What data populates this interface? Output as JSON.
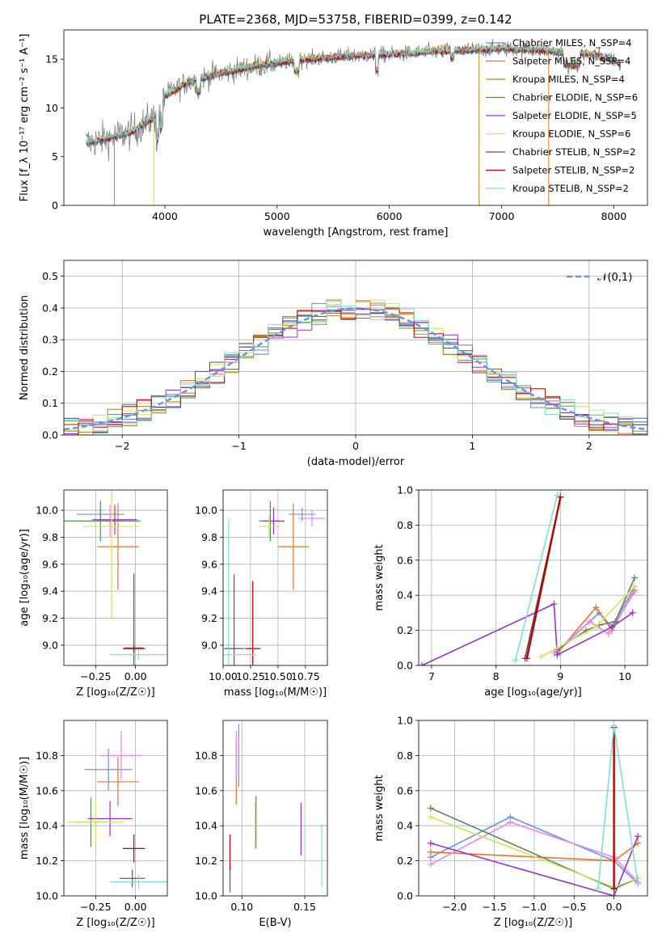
{
  "figure": {
    "title": "PLATE=2368, MJD=53758, FIBERID=0399, z=0.142"
  },
  "chart_data": [
    {
      "id": "spectrum",
      "type": "line",
      "xlabel": "wavelength [Angstrom, rest frame]",
      "ylabel": "Flux [f_λ 10⁻¹⁷ erg cm⁻² s⁻¹ A⁻¹]",
      "xlim": [
        3100,
        8300
      ],
      "ylim": [
        0,
        18
      ],
      "xticks": [
        4000,
        5000,
        6000,
        7000,
        8000
      ],
      "yticks": [
        0,
        5,
        10,
        15
      ],
      "grid": false,
      "legend_position": "right",
      "series": [
        {
          "name": "Chabrier MILES, N_SSP=4",
          "color": "#5b8fd9"
        },
        {
          "name": "Salpeter MILES, N_SSP=4",
          "color": "#e8732b"
        },
        {
          "name": "Kroupa MILES, N_SSP=4",
          "color": "#b8860b"
        },
        {
          "name": "Chabrier ELODIE, N_SSP=6",
          "color": "#5a8a5a"
        },
        {
          "name": "Salpeter ELODIE, N_SSP=5",
          "color": "#9932cc"
        },
        {
          "name": "Kroupa ELODIE, N_SSP=6",
          "color": "#d4e157"
        },
        {
          "name": "Chabrier STELIB, N_SSP=2",
          "color": "#555555"
        },
        {
          "name": "Salpeter STELIB, N_SSP=2",
          "color": "#c00000"
        },
        {
          "name": "Kroupa STELIB, N_SSP=2",
          "color": "#7fdede"
        }
      ],
      "continuum": {
        "x": [
          3300,
          3500,
          3700,
          3900,
          4000,
          4200,
          4400,
          4600,
          4800,
          5000,
          5200,
          5400,
          5600,
          5800,
          6000,
          6200,
          6400,
          6600,
          6800,
          7000,
          7200,
          7400,
          7600,
          7800,
          8000,
          8050
        ],
        "y": [
          6.4,
          6.9,
          7.5,
          9.0,
          11.2,
          12.6,
          13.3,
          13.8,
          14.3,
          14.6,
          14.9,
          15.1,
          15.3,
          15.4,
          15.5,
          15.6,
          15.8,
          15.9,
          16.0,
          16.1,
          16.0,
          15.9,
          15.6,
          15.5,
          15.0,
          14.5
        ]
      }
    },
    {
      "id": "residuals",
      "type": "histogram",
      "xlabel": "(data-model)/error",
      "ylabel": "Normed distribution",
      "xlim": [
        -2.5,
        2.5
      ],
      "ylim": [
        0,
        0.55
      ],
      "xticks": [
        -2,
        -1,
        0,
        1,
        2
      ],
      "yticks": [
        0.0,
        0.1,
        0.2,
        0.3,
        0.4,
        0.5
      ],
      "grid": true,
      "reference_label": "𝒩(0,1)",
      "reference_color": "#6495ed",
      "legend_position": "top-right"
    },
    {
      "id": "age-vs-Z",
      "type": "errorbar",
      "xlabel": "Z [log₁₀(Z/Z☉)]",
      "ylabel": "age  [log₁₀(age/yr)]",
      "xlim": [
        -0.45,
        0.2
      ],
      "ylim": [
        8.85,
        10.15
      ],
      "xticks": [
        -0.25,
        0.0
      ],
      "yticks": [
        9.0,
        9.2,
        9.4,
        9.6,
        9.8,
        10.0
      ],
      "grid": true,
      "points": [
        {
          "x": -0.22,
          "y": 9.97,
          "xerr": 0.15,
          "yerr": 0.05,
          "color": "#6495ed"
        },
        {
          "x": -0.11,
          "y": 9.73,
          "xerr": 0.13,
          "yerr": 0.32,
          "color": "#e8732b"
        },
        {
          "x": -0.16,
          "y": 9.92,
          "xerr": 0.08,
          "yerr": 0.12,
          "color": "#ee82ee"
        },
        {
          "x": -0.22,
          "y": 9.92,
          "xerr": 0.25,
          "yerr": 0.15,
          "color": "#5a8a5a"
        },
        {
          "x": -0.13,
          "y": 9.93,
          "xerr": 0.14,
          "yerr": 0.11,
          "color": "#9932cc"
        },
        {
          "x": -0.15,
          "y": 9.88,
          "xerr": 0.18,
          "yerr": 0.68,
          "color": "#d4e157"
        },
        {
          "x": -0.01,
          "y": 8.98,
          "xerr": 0.06,
          "yerr": 0.55,
          "color": "#555555"
        },
        {
          "x": -0.01,
          "y": 8.975,
          "xerr": 0.07,
          "yerr": 0.03,
          "color": "#c00000"
        },
        {
          "x": 0.02,
          "y": 8.93,
          "xerr": 0.18,
          "yerr": 0.04,
          "color": "#7fdede"
        }
      ]
    },
    {
      "id": "age-vs-mass",
      "type": "errorbar",
      "xlabel": "mass [log₁₀(M/M☉)]",
      "ylabel": "",
      "xlim": [
        10.0,
        10.95
      ],
      "ylim": [
        8.85,
        10.15
      ],
      "xticks": [
        10.0,
        10.25,
        10.5,
        10.75
      ],
      "yticks": [
        9.0,
        9.2,
        9.4,
        9.6,
        9.8,
        10.0
      ],
      "grid": true,
      "points": [
        {
          "x": 10.72,
          "y": 9.97,
          "xerr": 0.12,
          "yerr": 0.05,
          "color": "#6495ed"
        },
        {
          "x": 10.64,
          "y": 9.73,
          "xerr": 0.14,
          "yerr": 0.32,
          "color": "#e8732b"
        },
        {
          "x": 10.81,
          "y": 9.94,
          "xerr": 0.12,
          "yerr": 0.06,
          "color": "#ee82ee"
        },
        {
          "x": 10.43,
          "y": 9.92,
          "xerr": 0.1,
          "yerr": 0.15,
          "color": "#5a8a5a"
        },
        {
          "x": 10.46,
          "y": 9.92,
          "xerr": 0.1,
          "yerr": 0.1,
          "color": "#9932cc"
        },
        {
          "x": 10.42,
          "y": 9.88,
          "xerr": 0.1,
          "yerr": 0.08,
          "color": "#d4e157"
        },
        {
          "x": 10.1,
          "y": 8.975,
          "xerr": 0.09,
          "yerr": 0.55,
          "color": "#555555"
        },
        {
          "x": 10.27,
          "y": 8.975,
          "xerr": 0.07,
          "yerr": 0.5,
          "color": "#c00000"
        },
        {
          "x": 10.05,
          "y": 8.93,
          "xerr": 0.25,
          "yerr": 1.0,
          "color": "#7fdede"
        }
      ]
    },
    {
      "id": "weight-vs-age",
      "type": "line",
      "xlabel": "age  [log₁₀(age/yr)]",
      "ylabel": "mass weight",
      "xlim": [
        6.8,
        10.35
      ],
      "ylim": [
        0,
        1
      ],
      "xticks": [
        7,
        8,
        9,
        10
      ],
      "yticks": [
        0.0,
        0.2,
        0.4,
        0.6,
        0.8,
        1.0
      ],
      "grid": true,
      "series": [
        {
          "color": "#6495ed",
          "x": [
            8.95,
            9.6,
            9.8,
            10.15
          ],
          "y": [
            0.08,
            0.3,
            0.22,
            0.45
          ]
        },
        {
          "color": "#e8732b",
          "x": [
            8.95,
            9.55,
            9.8,
            10.15
          ],
          "y": [
            0.07,
            0.33,
            0.2,
            0.43
          ]
        },
        {
          "color": "#ee82ee",
          "x": [
            8.9,
            9.45,
            9.75,
            10.15
          ],
          "y": [
            0.07,
            0.25,
            0.18,
            0.42
          ]
        },
        {
          "color": "#5a8a5a",
          "x": [
            8.95,
            9.4,
            9.6,
            9.85,
            10.15
          ],
          "y": [
            0.09,
            0.2,
            0.23,
            0.25,
            0.5
          ]
        },
        {
          "color": "#9932cc",
          "x": [
            6.85,
            8.9,
            8.95,
            9.8,
            10.12
          ],
          "y": [
            0.0,
            0.35,
            0.06,
            0.22,
            0.3
          ]
        },
        {
          "color": "#d4e157",
          "x": [
            8.7,
            8.95,
            9.55,
            10.15
          ],
          "y": [
            0.05,
            0.1,
            0.22,
            0.45
          ]
        },
        {
          "color": "#555555",
          "x": [
            8.45,
            9.0
          ],
          "y": [
            0.04,
            0.96
          ]
        },
        {
          "color": "#c00000",
          "x": [
            8.48,
            9.0
          ],
          "y": [
            0.04,
            0.96
          ]
        },
        {
          "color": "#7fdede",
          "x": [
            8.3,
            8.95
          ],
          "y": [
            0.03,
            0.97
          ]
        }
      ]
    },
    {
      "id": "mass-vs-Z",
      "type": "errorbar",
      "xlabel": "Z [log₁₀(Z/Z☉)]",
      "ylabel": "mass [log₁₀(M/M☉)]",
      "xlim": [
        -0.45,
        0.2
      ],
      "ylim": [
        10.0,
        11.0
      ],
      "xticks": [
        -0.25,
        0.0
      ],
      "yticks": [
        10.0,
        10.2,
        10.4,
        10.6,
        10.8
      ],
      "grid": true,
      "points": [
        {
          "x": -0.17,
          "y": 10.72,
          "xerr": 0.15,
          "yerr": 0.12,
          "color": "#6495ed"
        },
        {
          "x": -0.11,
          "y": 10.65,
          "xerr": 0.13,
          "yerr": 0.14,
          "color": "#e8732b"
        },
        {
          "x": -0.09,
          "y": 10.8,
          "xerr": 0.13,
          "yerr": 0.14,
          "color": "#ee82ee"
        },
        {
          "x": -0.28,
          "y": 10.42,
          "xerr": 0.1,
          "yerr": 0.14,
          "color": "#5a8a5a"
        },
        {
          "x": -0.16,
          "y": 10.44,
          "xerr": 0.14,
          "yerr": 0.1,
          "color": "#9932cc"
        },
        {
          "x": -0.25,
          "y": 10.42,
          "xerr": 0.18,
          "yerr": 0.12,
          "color": "#d4e157"
        },
        {
          "x": -0.02,
          "y": 10.1,
          "xerr": 0.08,
          "yerr": 0.05,
          "color": "#555555"
        },
        {
          "x": -0.01,
          "y": 10.27,
          "xerr": 0.07,
          "yerr": 0.08,
          "color": "#c00000"
        },
        {
          "x": 0.02,
          "y": 10.08,
          "xerr": 0.18,
          "yerr": 0.04,
          "color": "#7fdede"
        }
      ]
    },
    {
      "id": "mass-vs-EBV",
      "type": "errorbar",
      "xlabel": "E(B-V)",
      "ylabel": "",
      "xlim": [
        0.085,
        0.168
      ],
      "ylim": [
        10.0,
        11.0
      ],
      "xticks": [
        0.1,
        0.15
      ],
      "yticks": [
        10.0,
        10.2,
        10.4,
        10.6,
        10.8
      ],
      "grid": true,
      "points": [
        {
          "x": 0.0975,
          "y": 10.8,
          "xerr": 0,
          "yerr": 0.18,
          "color": "#6495ed"
        },
        {
          "x": 0.0955,
          "y": 10.7,
          "xerr": 0,
          "yerr": 0.18,
          "color": "#e8732b"
        },
        {
          "x": 0.0955,
          "y": 10.8,
          "xerr": 0,
          "yerr": 0.14,
          "color": "#ee82ee"
        },
        {
          "x": 0.1112,
          "y": 10.42,
          "xerr": 0,
          "yerr": 0.15,
          "color": "#5a8a5a"
        },
        {
          "x": 0.147,
          "y": 10.38,
          "xerr": 0,
          "yerr": 0.15,
          "color": "#9932cc"
        },
        {
          "x": 0.1105,
          "y": 10.4,
          "xerr": 0,
          "yerr": 0.13,
          "color": "#d4e157"
        },
        {
          "x": 0.0905,
          "y": 10.1,
          "xerr": 0,
          "yerr": 0.08,
          "color": "#555555"
        },
        {
          "x": 0.0905,
          "y": 10.25,
          "xerr": 0,
          "yerr": 0.1,
          "color": "#c00000"
        },
        {
          "x": 0.1635,
          "y": 10.23,
          "xerr": 0,
          "yerr": 0.18,
          "color": "#7fdede"
        }
      ]
    },
    {
      "id": "weight-vs-Z",
      "type": "line",
      "xlabel": "Z [log₁₀(Z/Z☉)]",
      "ylabel": "mass weight",
      "xlim": [
        -2.45,
        0.42
      ],
      "ylim": [
        0,
        1
      ],
      "xticks": [
        -2.0,
        -1.5,
        -1.0,
        -0.5,
        0.0
      ],
      "yticks": [
        0.0,
        0.2,
        0.4,
        0.6,
        0.8,
        1.0
      ],
      "grid": true,
      "series": [
        {
          "color": "#6495ed",
          "x": [
            -2.3,
            -1.3,
            0.0,
            0.3
          ],
          "y": [
            0.22,
            0.45,
            0.2,
            0.07
          ]
        },
        {
          "color": "#e8732b",
          "x": [
            -2.3,
            0.0,
            0.3
          ],
          "y": [
            0.25,
            0.2,
            0.3
          ]
        },
        {
          "color": "#ee82ee",
          "x": [
            -2.3,
            -1.3,
            0.0,
            0.3
          ],
          "y": [
            0.18,
            0.42,
            0.22,
            0.08
          ]
        },
        {
          "color": "#5a8a5a",
          "x": [
            -2.3,
            0.0,
            0.3
          ],
          "y": [
            0.5,
            0.04,
            0.1
          ]
        },
        {
          "color": "#9932cc",
          "x": [
            -2.3,
            0.0,
            0.3
          ],
          "y": [
            0.3,
            0.0,
            0.34
          ]
        },
        {
          "color": "#d4e157",
          "x": [
            -2.3,
            0.0,
            0.3
          ],
          "y": [
            0.45,
            0.05,
            0.1
          ]
        },
        {
          "color": "#555555",
          "x": [
            0.0,
            0.0
          ],
          "y": [
            0.04,
            0.96
          ]
        },
        {
          "color": "#c00000",
          "x": [
            0.0,
            0.0
          ],
          "y": [
            0.04,
            0.96
          ]
        },
        {
          "color": "#7fdede",
          "x": [
            -0.2,
            0.0,
            0.3
          ],
          "y": [
            0.04,
            0.97,
            0.07
          ]
        }
      ]
    }
  ]
}
